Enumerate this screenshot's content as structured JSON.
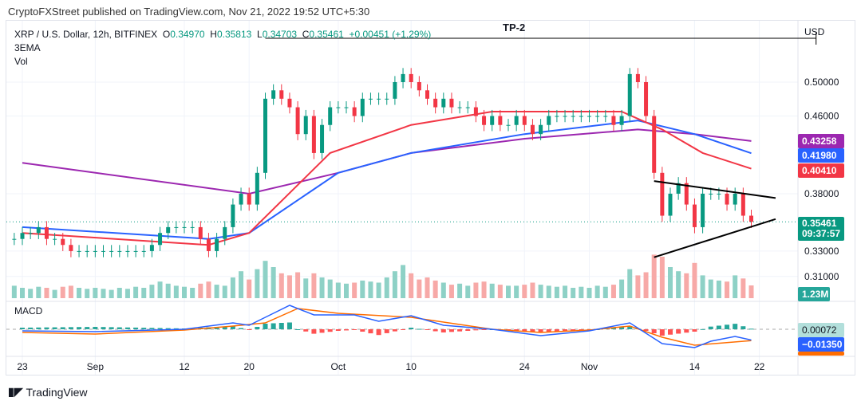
{
  "header": {
    "published": "CryptoFXStreet published on TradingView.com, Nov 21, 2022 19:52 UTC+5:30"
  },
  "legend": {
    "symbol": "XRP / U.S. Dollar, 12h, BITFINEX",
    "o_label": "O",
    "o": "0.34970",
    "h_label": "H",
    "h": "0.35813",
    "l_label": "L",
    "l": "0.34703",
    "c_label": "C",
    "c": "0.35461",
    "change": "+0.00451 (+1.29%)",
    "ema": "3EMA",
    "vol": "Vol",
    "macd": "MACD"
  },
  "annotation": {
    "tp2": "TP-2"
  },
  "price_axis": {
    "currency": "USD",
    "ticks": [
      "0.50000",
      "0.46000",
      "0.38000",
      "0.33000",
      "0.31000"
    ]
  },
  "tags": {
    "ema200": "0.43258",
    "ema50": "0.41980",
    "ema20": "0.40410",
    "price": "0.35461",
    "countdown": "09:37:57",
    "volume": "1.23M",
    "macd_hist": "0.00072",
    "macd": "−0.01350"
  },
  "time_axis": [
    "23",
    "Sep",
    "12",
    "20",
    "Oct",
    "10",
    "24",
    "Nov",
    "14",
    "22"
  ],
  "brand": "TradingView",
  "colors": {
    "up": "#089981",
    "down": "#f23645",
    "ema20": "#f23645",
    "ema50": "#2962ff",
    "ema200": "#9c27b0",
    "macd": "#2962ff",
    "signal": "#ff6d00"
  },
  "chart_data": {
    "type": "candlestick",
    "scale": "log",
    "start_date": "2022-08-22",
    "interval": "1 day (approx. closes)",
    "ticks_y": [
      0.5,
      0.46,
      0.38,
      0.33,
      0.31
    ],
    "closes": [
      0.34,
      0.345,
      0.345,
      0.35,
      0.34,
      0.34,
      0.335,
      0.33,
      0.33,
      0.33,
      0.33,
      0.33,
      0.33,
      0.33,
      0.33,
      0.33,
      0.33,
      0.335,
      0.345,
      0.35,
      0.35,
      0.35,
      0.35,
      0.34,
      0.33,
      0.34,
      0.35,
      0.37,
      0.38,
      0.37,
      0.4,
      0.48,
      0.49,
      0.48,
      0.47,
      0.44,
      0.46,
      0.42,
      0.45,
      0.47,
      0.47,
      0.47,
      0.46,
      0.48,
      0.48,
      0.48,
      0.48,
      0.5,
      0.51,
      0.5,
      0.49,
      0.48,
      0.47,
      0.48,
      0.47,
      0.47,
      0.47,
      0.46,
      0.45,
      0.46,
      0.45,
      0.45,
      0.46,
      0.45,
      0.44,
      0.45,
      0.46,
      0.46,
      0.46,
      0.46,
      0.46,
      0.46,
      0.46,
      0.46,
      0.45,
      0.46,
      0.51,
      0.5,
      0.46,
      0.4,
      0.36,
      0.38,
      0.39,
      0.37,
      0.35,
      0.38,
      0.38,
      0.38,
      0.37,
      0.38,
      0.36,
      0.35461
    ],
    "volume_m": [
      1.2,
      1.0,
      0.9,
      1.1,
      1.0,
      0.8,
      1.1,
      1.2,
      1.0,
      0.9,
      1.0,
      0.9,
      0.8,
      1.0,
      0.9,
      1.1,
      1.0,
      1.3,
      1.6,
      1.4,
      1.2,
      1.1,
      1.0,
      1.4,
      1.6,
      1.3,
      1.2,
      2.0,
      2.6,
      1.8,
      2.8,
      3.6,
      3.0,
      2.4,
      2.2,
      2.5,
      1.9,
      2.4,
      2.0,
      1.8,
      1.5,
      1.4,
      1.5,
      1.7,
      1.6,
      1.5,
      2.0,
      2.6,
      3.2,
      2.4,
      1.8,
      2.0,
      1.7,
      1.5,
      1.3,
      1.4,
      1.2,
      1.5,
      1.6,
      1.4,
      1.3,
      1.2,
      1.2,
      1.3,
      1.5,
      1.3,
      1.2,
      1.1,
      1.2,
      1.0,
      1.1,
      1.0,
      1.2,
      1.1,
      1.3,
      1.8,
      2.8,
      2.2,
      2.5,
      4.2,
      4.0,
      3.0,
      2.6,
      2.4,
      3.4,
      2.2,
      1.8,
      1.7,
      1.6,
      2.2,
      1.9,
      1.23
    ],
    "ema20": [
      [
        "2022-08-23",
        0.345
      ],
      [
        "2022-09-15",
        0.335
      ],
      [
        "2022-09-20",
        0.345
      ],
      [
        "2022-09-30",
        0.42
      ],
      [
        "2022-10-10",
        0.45
      ],
      [
        "2022-10-20",
        0.465
      ],
      [
        "2022-11-05",
        0.465
      ],
      [
        "2022-11-10",
        0.445
      ],
      [
        "2022-11-15",
        0.42
      ],
      [
        "2022-11-21",
        0.4041
      ]
    ],
    "ema50": [
      [
        "2022-08-23",
        0.35
      ],
      [
        "2022-09-15",
        0.34
      ],
      [
        "2022-09-20",
        0.345
      ],
      [
        "2022-10-01",
        0.4
      ],
      [
        "2022-10-10",
        0.42
      ],
      [
        "2022-10-24",
        0.44
      ],
      [
        "2022-11-07",
        0.455
      ],
      [
        "2022-11-14",
        0.44
      ],
      [
        "2022-11-21",
        0.4198
      ]
    ],
    "ema200": [
      [
        "2022-08-23",
        0.41
      ],
      [
        "2022-09-20",
        0.38
      ],
      [
        "2022-10-01",
        0.4
      ],
      [
        "2022-10-10",
        0.42
      ],
      [
        "2022-10-24",
        0.435
      ],
      [
        "2022-11-07",
        0.445
      ],
      [
        "2022-11-14",
        0.44
      ],
      [
        "2022-11-21",
        0.43258
      ]
    ],
    "trendlines": [
      {
        "from": [
          "2022-11-09",
          0.392
        ],
        "to": [
          "2022-11-24",
          0.376
        ]
      },
      {
        "from": [
          "2022-11-09",
          0.325
        ],
        "to": [
          "2022-11-24",
          0.357
        ]
      },
      {
        "from": [
          "2022-09-22",
          0.557
        ],
        "to": [
          "2022-11-29",
          0.557
        ],
        "label": "TP-2"
      }
    ],
    "macd": [
      [
        "2022-08-23",
        -0.002
      ],
      [
        "2022-09-01",
        -0.003
      ],
      [
        "2022-09-12",
        0.0
      ],
      [
        "2022-09-18",
        0.008
      ],
      [
        "2022-09-20",
        0.005
      ],
      [
        "2022-09-22",
        0.015
      ],
      [
        "2022-09-25",
        0.03
      ],
      [
        "2022-09-28",
        0.018
      ],
      [
        "2022-10-03",
        0.018
      ],
      [
        "2022-10-06",
        0.01
      ],
      [
        "2022-10-10",
        0.017
      ],
      [
        "2022-10-14",
        0.005
      ],
      [
        "2022-10-20",
        0.0
      ],
      [
        "2022-10-26",
        -0.008
      ],
      [
        "2022-11-01",
        -0.002
      ],
      [
        "2022-11-06",
        0.008
      ],
      [
        "2022-11-10",
        -0.018
      ],
      [
        "2022-11-14",
        -0.023
      ],
      [
        "2022-11-16",
        -0.015
      ],
      [
        "2022-11-19",
        -0.009
      ],
      [
        "2022-11-21",
        -0.0135
      ]
    ],
    "signal": [
      [
        "2022-08-23",
        -0.004
      ],
      [
        "2022-09-01",
        -0.006
      ],
      [
        "2022-09-12",
        -0.001
      ],
      [
        "2022-09-18",
        0.004
      ],
      [
        "2022-09-22",
        0.008
      ],
      [
        "2022-09-26",
        0.026
      ],
      [
        "2022-10-01",
        0.02
      ],
      [
        "2022-10-10",
        0.015
      ],
      [
        "2022-10-20",
        0.0
      ],
      [
        "2022-10-26",
        -0.004
      ],
      [
        "2022-11-01",
        -0.001
      ],
      [
        "2022-11-06",
        0.004
      ],
      [
        "2022-11-10",
        -0.01
      ],
      [
        "2022-11-14",
        -0.02
      ],
      [
        "2022-11-21",
        -0.0142
      ]
    ]
  }
}
